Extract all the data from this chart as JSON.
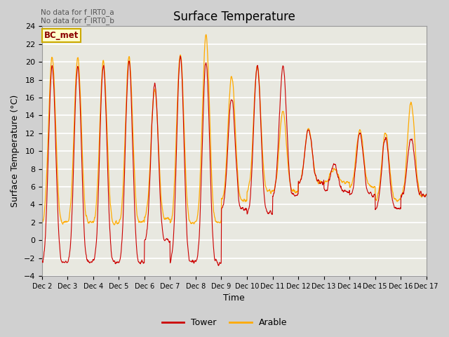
{
  "title": "Surface Temperature",
  "ylabel": "Surface Temperature (°C)",
  "xlabel": "Time",
  "ylim": [
    -4,
    24
  ],
  "yticks": [
    -4,
    -2,
    0,
    2,
    4,
    6,
    8,
    10,
    12,
    14,
    16,
    18,
    20,
    22,
    24
  ],
  "xtick_labels": [
    "Dec 2",
    "Dec 3",
    "Dec 4",
    "Dec 5",
    "Dec 6",
    "Dec 7",
    "Dec 8",
    "Dec 9",
    "Dec 10",
    "Dec 11",
    "Dec 12",
    "Dec 13",
    "Dec 14",
    "Dec 15",
    "Dec 16",
    "Dec 17"
  ],
  "tower_color": "#cc0000",
  "arable_color": "#ffaa00",
  "fig_bg": "#d0d0d0",
  "plot_bg": "#e8e8e0",
  "annotation_text": "No data for f_IRT0_a\nNo data for f_IRT0_b",
  "legend_label_text": "BC_met",
  "legend1": "Tower",
  "legend2": "Arable",
  "title_fontsize": 12,
  "axis_fontsize": 9,
  "tick_fontsize": 8,
  "daily_max_tower": [
    19.5,
    19.5,
    19.5,
    20.0,
    17.5,
    20.5,
    20.0,
    16.0,
    19.5,
    19.5,
    12.5,
    8.5,
    12.0,
    11.5,
    11.5
  ],
  "daily_min_tower": [
    -2.5,
    -2.5,
    -2.5,
    -2.5,
    0.0,
    -2.5,
    -2.5,
    3.5,
    3.0,
    5.0,
    6.5,
    5.5,
    5.0,
    3.5,
    5.0
  ],
  "daily_max_arable": [
    20.5,
    20.5,
    20.0,
    20.5,
    17.0,
    21.0,
    23.0,
    18.5,
    19.5,
    14.5,
    12.5,
    8.0,
    12.5,
    12.0,
    15.5
  ],
  "daily_min_arable": [
    2.0,
    2.0,
    2.0,
    2.0,
    2.5,
    2.0,
    2.0,
    4.5,
    5.5,
    5.5,
    6.5,
    6.5,
    6.0,
    4.5,
    5.0
  ]
}
